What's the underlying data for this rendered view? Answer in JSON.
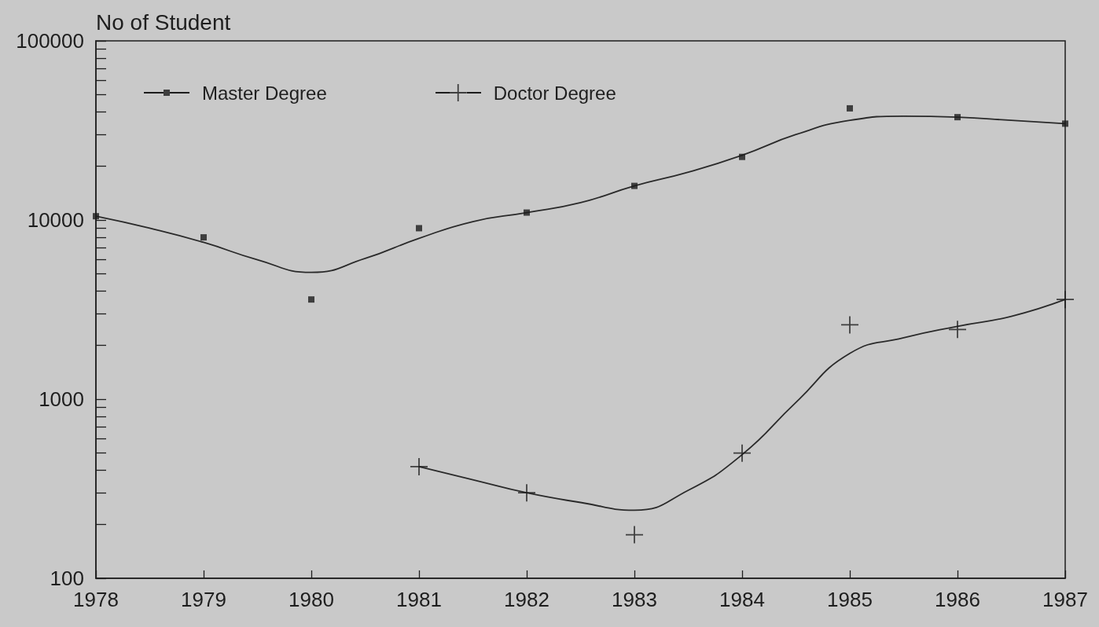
{
  "chart_data": {
    "type": "scatter",
    "ylabel": "No of Student",
    "x": [
      1978,
      1979,
      1980,
      1981,
      1982,
      1983,
      1984,
      1985,
      1986,
      1987
    ],
    "series": [
      {
        "name": "Master Degree",
        "color": "#1c1c1c",
        "marker": "square",
        "values": [
          10500,
          8000,
          3600,
          9000,
          11000,
          15500,
          22500,
          42000,
          37500,
          34500
        ]
      },
      {
        "name": "Doctor Degree",
        "color": "#1c1c1c",
        "marker": "cross",
        "x": [
          1981,
          1982,
          1983,
          1984,
          1985,
          1986,
          1987
        ],
        "values": [
          420,
          300,
          175,
          500,
          2600,
          2450,
          3600
        ]
      },
      {
        "type": "line",
        "color": "#2a2a2a",
        "marker": "none",
        "x": [
          1978,
          1978.5,
          1979,
          1979.5,
          1980,
          1980.5,
          1981,
          1981.5,
          1982,
          1982.5,
          1983,
          1983.5,
          1984,
          1984.5,
          1985,
          1985.5,
          1986,
          1986.5,
          1987
        ],
        "values": [
          10500,
          9000,
          7500,
          6000,
          5100,
          6100,
          7900,
          9800,
          11000,
          12500,
          15500,
          18500,
          23000,
          30000,
          36000,
          38000,
          37500,
          36000,
          34500
        ]
      },
      {
        "type": "line",
        "color": "#2a2a2a",
        "marker": "none",
        "x": [
          1981,
          1981.5,
          1982,
          1982.5,
          1983,
          1983.5,
          1984,
          1984.5,
          1985,
          1985.5,
          1986,
          1986.5,
          1987
        ],
        "values": [
          420,
          355,
          300,
          265,
          240,
          310,
          490,
          960,
          1800,
          2200,
          2550,
          2900,
          3600
        ]
      }
    ],
    "log": "y",
    "xlim": [
      1978,
      1987
    ],
    "xticks": [
      1978,
      1979,
      1980,
      1981,
      1982,
      1983,
      1984,
      1985,
      1986,
      1987
    ],
    "ylim": [
      100,
      100000
    ],
    "yticks": [
      100,
      {
        "value": 200,
        "label": null
      },
      {
        "value": 300,
        "label": null
      },
      {
        "value": 400,
        "label": null
      },
      {
        "value": 500,
        "label": null
      },
      {
        "value": 600,
        "label": null
      },
      {
        "value": 700,
        "label": null
      },
      {
        "value": 800,
        "label": null
      },
      {
        "value": 900,
        "label": null
      },
      1000,
      {
        "value": 2000,
        "label": null
      },
      {
        "value": 3000,
        "label": null
      },
      {
        "value": 4000,
        "label": null
      },
      {
        "value": 5000,
        "label": null
      },
      {
        "value": 6000,
        "label": null
      },
      {
        "value": 7000,
        "label": null
      },
      {
        "value": 8000,
        "label": null
      },
      {
        "value": 9000,
        "label": null
      },
      10000,
      {
        "value": 20000,
        "label": null
      },
      {
        "value": 30000,
        "label": null
      },
      {
        "value": 40000,
        "label": null
      },
      {
        "value": 50000,
        "label": null
      },
      {
        "value": 60000,
        "label": null
      },
      {
        "value": 70000,
        "label": null
      },
      {
        "value": 80000,
        "label": null
      },
      {
        "value": 90000,
        "label": null
      },
      100000
    ],
    "grid": false,
    "legend": "top left",
    "line_style": "solid"
  }
}
